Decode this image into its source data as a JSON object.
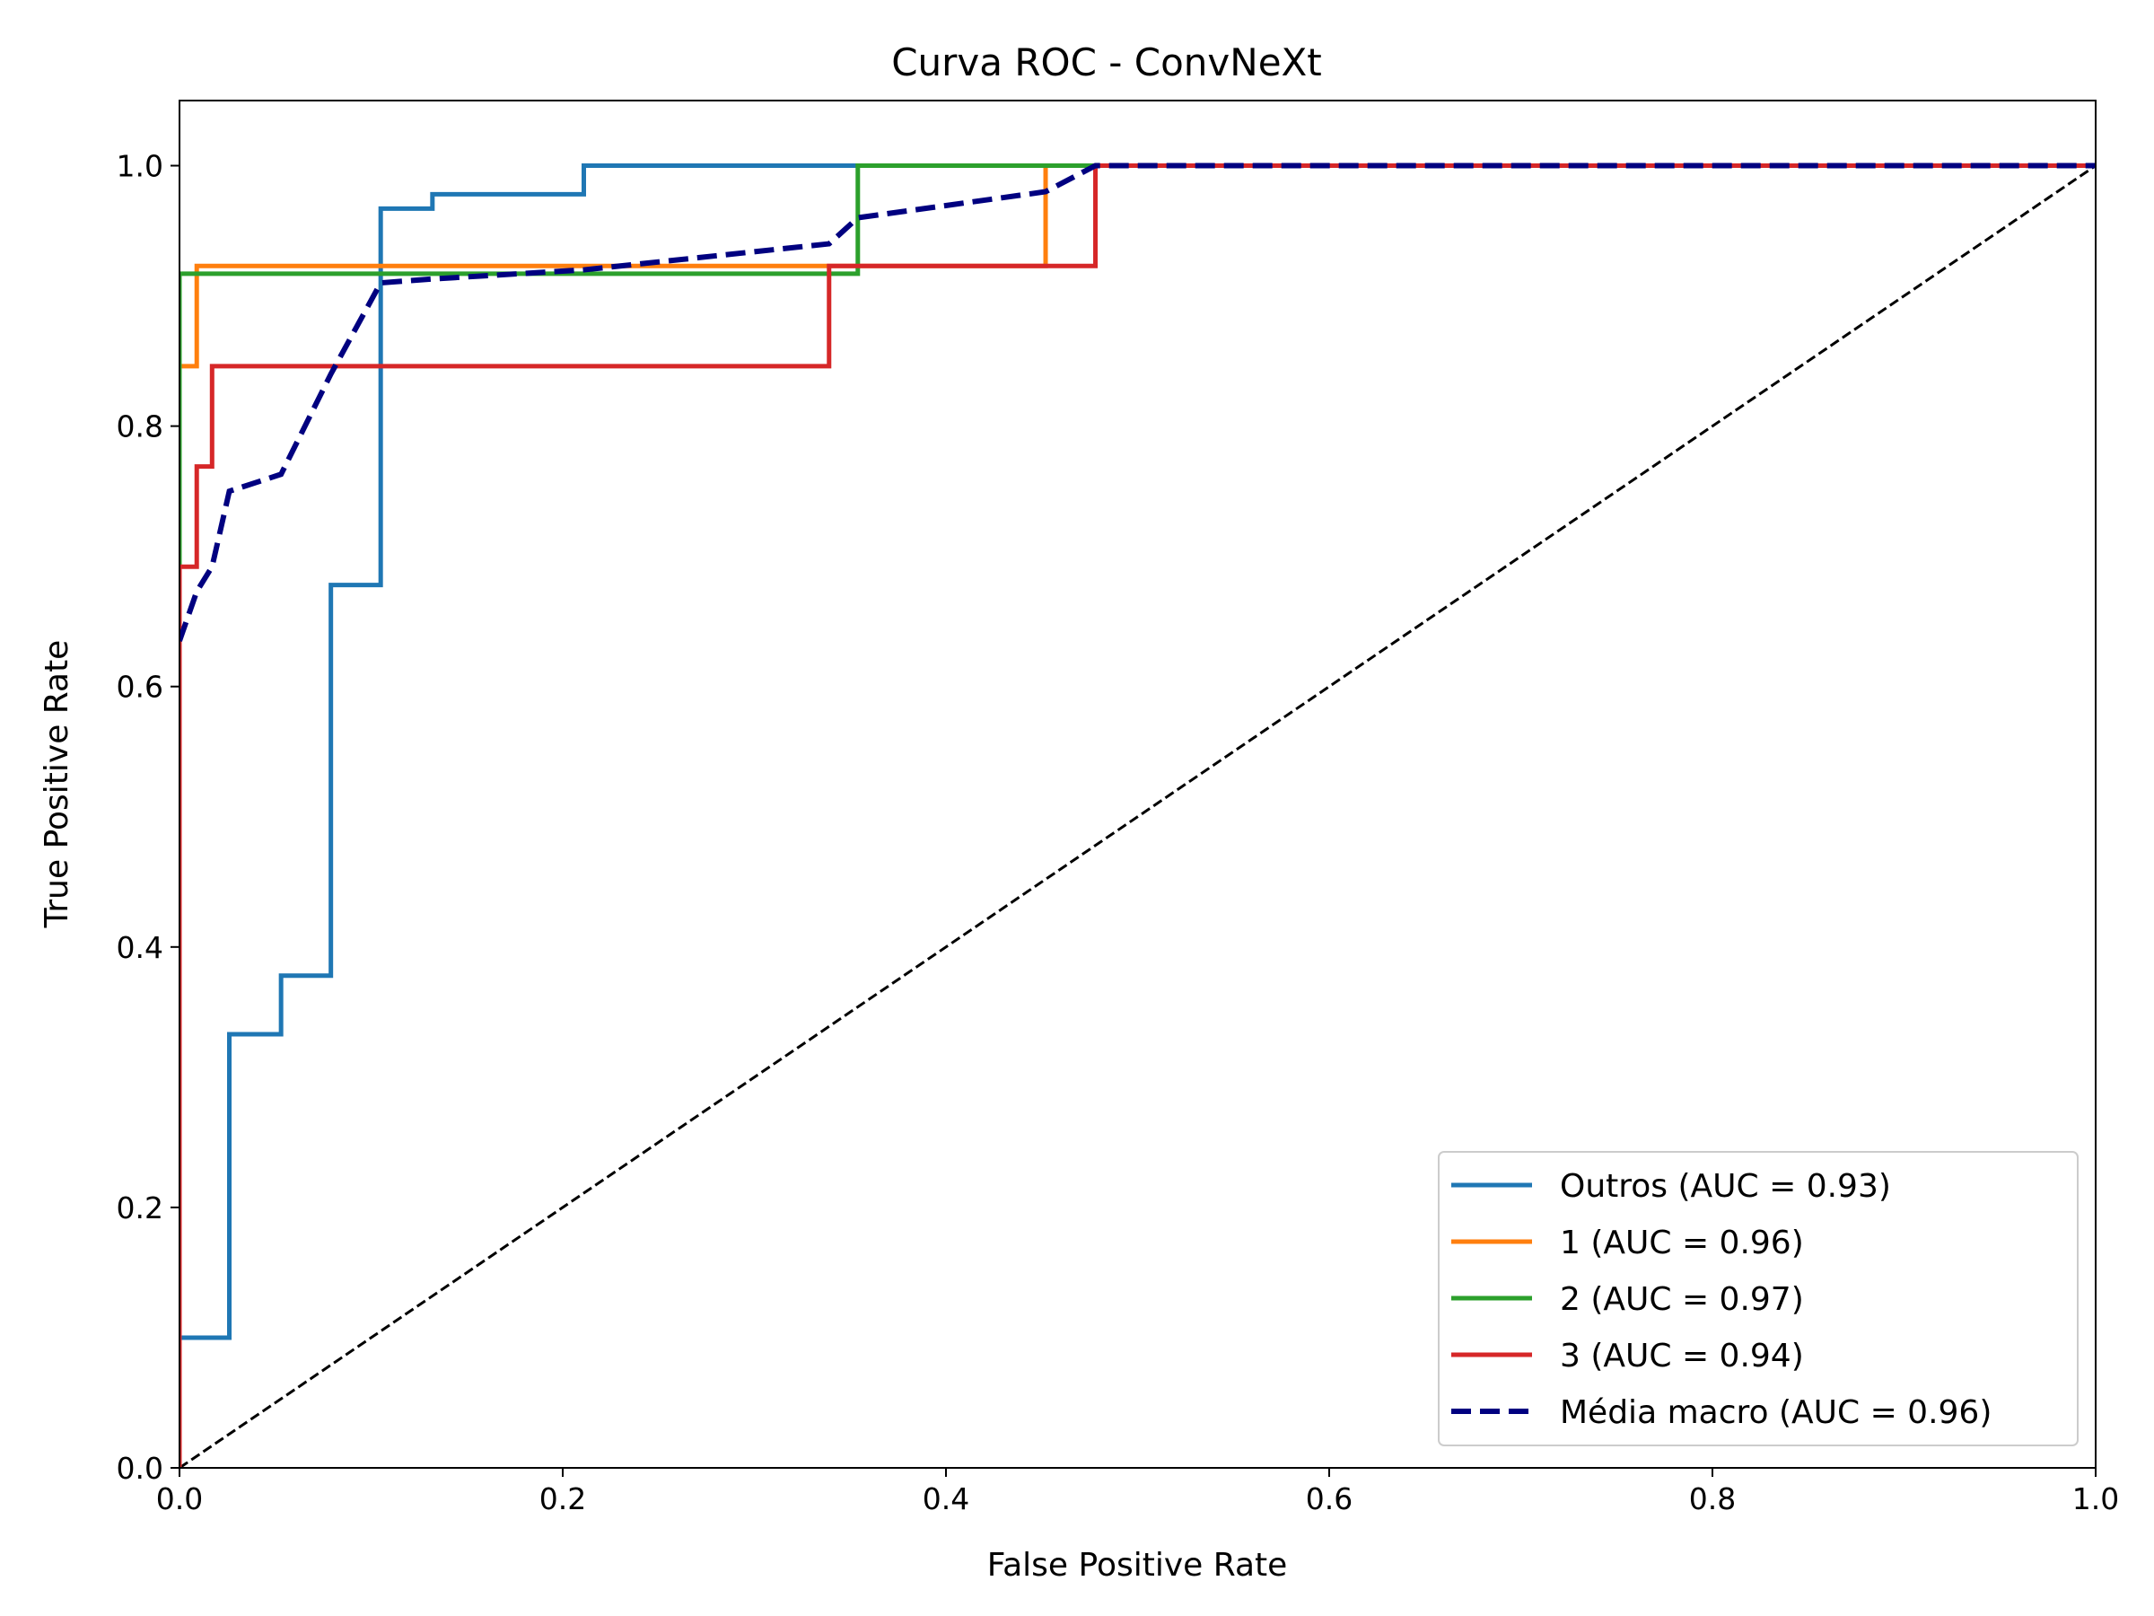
{
  "chart_data": {
    "type": "line",
    "title": "Curva ROC - ConvNeXt",
    "xlabel": "False Positive Rate",
    "ylabel": "True Positive Rate",
    "xlim": [
      0.0,
      1.0
    ],
    "ylim": [
      0.0,
      1.05
    ],
    "xticks": [
      "0.0",
      "0.2",
      "0.4",
      "0.6",
      "0.8",
      "1.0"
    ],
    "yticks": [
      "0.0",
      "0.2",
      "0.4",
      "0.6",
      "0.8",
      "1.0"
    ],
    "grid": false,
    "legend_position": "lower-right",
    "series": [
      {
        "name": "Outros (AUC = 0.93)",
        "color": "#1f77b4",
        "dash": "solid",
        "x": [
          0.0,
          0.0,
          0.026,
          0.026,
          0.053,
          0.053,
          0.079,
          0.079,
          0.105,
          0.105,
          0.132,
          0.132,
          0.211,
          0.211,
          1.0
        ],
        "y": [
          0.0,
          0.1,
          0.1,
          0.333,
          0.333,
          0.378,
          0.378,
          0.678,
          0.678,
          0.967,
          0.967,
          0.978,
          0.978,
          1.0,
          1.0
        ]
      },
      {
        "name": "1 (AUC = 0.96)",
        "color": "#ff7f0e",
        "dash": "solid",
        "x": [
          0.0,
          0.0,
          0.009,
          0.009,
          0.452,
          0.452,
          1.0
        ],
        "y": [
          0.0,
          0.846,
          0.846,
          0.923,
          0.923,
          1.0,
          1.0
        ]
      },
      {
        "name": "2 (AUC = 0.97)",
        "color": "#2ca02c",
        "dash": "solid",
        "x": [
          0.0,
          0.0,
          0.354,
          0.354,
          1.0
        ],
        "y": [
          0.0,
          0.917,
          0.917,
          1.0,
          1.0
        ]
      },
      {
        "name": "3 (AUC = 0.94)",
        "color": "#d62728",
        "dash": "solid",
        "x": [
          0.0,
          0.0,
          0.009,
          0.009,
          0.017,
          0.017,
          0.339,
          0.339,
          0.478,
          0.478,
          1.0
        ],
        "y": [
          0.0,
          0.692,
          0.692,
          0.769,
          0.769,
          0.846,
          0.846,
          0.923,
          0.923,
          1.0,
          1.0
        ]
      },
      {
        "name": "Média macro (AUC = 0.96)",
        "color": "#000080",
        "dash": "dashed",
        "x": [
          0.0,
          0.009,
          0.017,
          0.026,
          0.053,
          0.079,
          0.105,
          0.132,
          0.211,
          0.339,
          0.354,
          0.452,
          0.478,
          1.0
        ],
        "y": [
          0.635,
          0.673,
          0.692,
          0.75,
          0.763,
          0.84,
          0.91,
          0.913,
          0.92,
          0.94,
          0.96,
          0.98,
          1.0,
          1.0
        ]
      }
    ],
    "reference_line": {
      "x": [
        0.0,
        1.0
      ],
      "y": [
        0.0,
        1.0
      ],
      "color": "#000000",
      "dash": "dashed"
    }
  }
}
